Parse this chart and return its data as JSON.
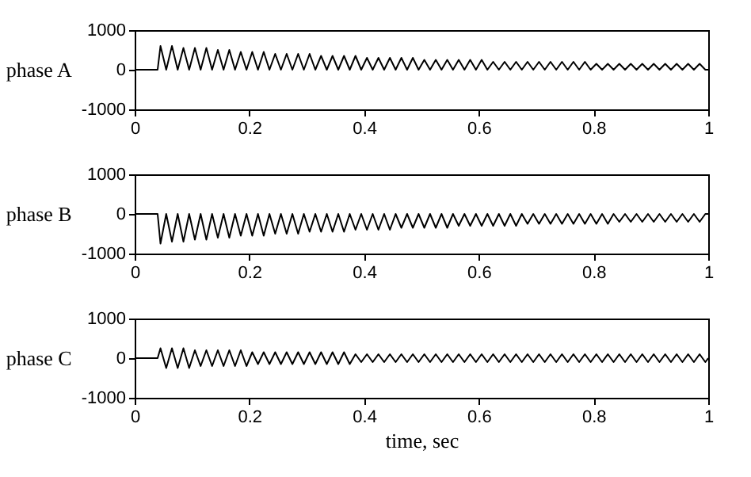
{
  "chart_data": [
    {
      "type": "line",
      "ylabel": "phase A",
      "xlim": [
        0,
        1
      ],
      "xticks": [
        0,
        0.2,
        0.4,
        0.6,
        0.8,
        1
      ],
      "ylim": [
        -1000,
        1000
      ],
      "yticks": [
        -1000,
        0,
        1000
      ],
      "grid": false,
      "line_style": "solid",
      "x": [
        0,
        0.04,
        0.045,
        0.055,
        0.065,
        0.075,
        0.085,
        0.095,
        0.105,
        0.115,
        0.125,
        0.135,
        0.145,
        0.155,
        0.165,
        0.175,
        0.185,
        0.195,
        0.205,
        0.215,
        0.225,
        0.235,
        0.245,
        0.255,
        0.265,
        0.275,
        0.285,
        0.295,
        0.305,
        0.315,
        0.325,
        0.335,
        0.345,
        0.355,
        0.365,
        0.375,
        0.385,
        0.395,
        0.405,
        0.415,
        0.425,
        0.435,
        0.445,
        0.455,
        0.465,
        0.475,
        0.485,
        0.495,
        0.505,
        0.515,
        0.525,
        0.535,
        0.545,
        0.555,
        0.565,
        0.575,
        0.585,
        0.595,
        0.605,
        0.615,
        0.625,
        0.635,
        0.645,
        0.655,
        0.665,
        0.675,
        0.685,
        0.695,
        0.705,
        0.715,
        0.725,
        0.735,
        0.745,
        0.755,
        0.765,
        0.775,
        0.785,
        0.795,
        0.805,
        0.815,
        0.825,
        0.835,
        0.845,
        0.855,
        0.865,
        0.875,
        0.885,
        0.895,
        0.905,
        0.915,
        0.925,
        0.935,
        0.945,
        0.955,
        0.965,
        0.975,
        0.985,
        0.995,
        1
      ],
      "series": [
        {
          "color": "#000000",
          "values": [
            0,
            0,
            600,
            0,
            600,
            0,
            550,
            0,
            550,
            0,
            550,
            0,
            500,
            0,
            500,
            0,
            450,
            0,
            450,
            0,
            450,
            0,
            400,
            0,
            400,
            0,
            400,
            0,
            400,
            0,
            350,
            0,
            350,
            0,
            350,
            0,
            350,
            0,
            300,
            0,
            300,
            0,
            300,
            0,
            300,
            0,
            300,
            0,
            250,
            0,
            250,
            0,
            250,
            0,
            250,
            0,
            250,
            0,
            250,
            0,
            200,
            0,
            200,
            0,
            200,
            0,
            200,
            0,
            200,
            0,
            200,
            0,
            200,
            0,
            200,
            0,
            200,
            0,
            150,
            0,
            150,
            0,
            150,
            0,
            150,
            0,
            150,
            0,
            150,
            0,
            150,
            0,
            150,
            0,
            150,
            0,
            150,
            0,
            0
          ]
        }
      ]
    },
    {
      "type": "line",
      "ylabel": "phase B",
      "xlim": [
        0,
        1
      ],
      "xticks": [
        0,
        0.2,
        0.4,
        0.6,
        0.8,
        1
      ],
      "ylim": [
        -1000,
        1000
      ],
      "yticks": [
        -1000,
        0,
        1000
      ],
      "grid": false,
      "line_style": "solid",
      "x": [
        0,
        0.04,
        0.045,
        0.055,
        0.065,
        0.075,
        0.085,
        0.095,
        0.105,
        0.115,
        0.125,
        0.135,
        0.145,
        0.155,
        0.165,
        0.175,
        0.185,
        0.195,
        0.205,
        0.215,
        0.225,
        0.235,
        0.245,
        0.255,
        0.265,
        0.275,
        0.285,
        0.295,
        0.305,
        0.315,
        0.325,
        0.335,
        0.345,
        0.355,
        0.365,
        0.375,
        0.385,
        0.395,
        0.405,
        0.415,
        0.425,
        0.435,
        0.445,
        0.455,
        0.465,
        0.475,
        0.485,
        0.495,
        0.505,
        0.515,
        0.525,
        0.535,
        0.545,
        0.555,
        0.565,
        0.575,
        0.585,
        0.595,
        0.605,
        0.615,
        0.625,
        0.635,
        0.645,
        0.655,
        0.665,
        0.675,
        0.685,
        0.695,
        0.705,
        0.715,
        0.725,
        0.735,
        0.745,
        0.755,
        0.765,
        0.775,
        0.785,
        0.795,
        0.805,
        0.815,
        0.825,
        0.835,
        0.845,
        0.855,
        0.865,
        0.875,
        0.885,
        0.895,
        0.905,
        0.915,
        0.925,
        0.935,
        0.945,
        0.955,
        0.965,
        0.975,
        0.985,
        0.995,
        1
      ],
      "series": [
        {
          "color": "#000000",
          "values": [
            0,
            0,
            -750,
            0,
            -700,
            0,
            -700,
            0,
            -650,
            0,
            -650,
            0,
            -600,
            0,
            -600,
            0,
            -550,
            0,
            -550,
            0,
            -550,
            0,
            -500,
            0,
            -500,
            0,
            -500,
            0,
            -450,
            0,
            -450,
            0,
            -450,
            0,
            -450,
            0,
            -400,
            0,
            -400,
            0,
            -400,
            0,
            -400,
            0,
            -350,
            0,
            -350,
            0,
            -350,
            0,
            -350,
            0,
            -350,
            0,
            -300,
            0,
            -300,
            0,
            -300,
            0,
            -300,
            0,
            -300,
            0,
            -300,
            0,
            -250,
            0,
            -250,
            0,
            -250,
            0,
            -250,
            0,
            -250,
            0,
            -250,
            0,
            -250,
            0,
            -250,
            0,
            -200,
            0,
            -200,
            0,
            -200,
            0,
            -200,
            0,
            -200,
            0,
            -200,
            0,
            -200,
            0,
            -200,
            0,
            0
          ]
        }
      ]
    },
    {
      "type": "line",
      "ylabel": "phase C",
      "xlabel": "time, sec",
      "xlim": [
        0,
        1
      ],
      "xticks": [
        0,
        0.2,
        0.4,
        0.6,
        0.8,
        1
      ],
      "ylim": [
        -1000,
        1000
      ],
      "yticks": [
        -1000,
        0,
        1000
      ],
      "grid": false,
      "line_style": "solid",
      "x": [
        0,
        0.04,
        0.045,
        0.055,
        0.065,
        0.075,
        0.085,
        0.095,
        0.105,
        0.115,
        0.125,
        0.135,
        0.145,
        0.155,
        0.165,
        0.175,
        0.185,
        0.195,
        0.205,
        0.215,
        0.225,
        0.235,
        0.245,
        0.255,
        0.265,
        0.275,
        0.285,
        0.295,
        0.305,
        0.315,
        0.325,
        0.335,
        0.345,
        0.355,
        0.365,
        0.375,
        0.385,
        0.395,
        0.405,
        0.415,
        0.425,
        0.435,
        0.445,
        0.455,
        0.465,
        0.475,
        0.485,
        0.495,
        0.505,
        0.515,
        0.525,
        0.535,
        0.545,
        0.555,
        0.565,
        0.575,
        0.585,
        0.595,
        0.605,
        0.615,
        0.625,
        0.635,
        0.645,
        0.655,
        0.665,
        0.675,
        0.685,
        0.695,
        0.705,
        0.715,
        0.725,
        0.735,
        0.745,
        0.755,
        0.765,
        0.775,
        0.785,
        0.795,
        0.805,
        0.815,
        0.825,
        0.835,
        0.845,
        0.855,
        0.865,
        0.875,
        0.885,
        0.895,
        0.905,
        0.915,
        0.925,
        0.935,
        0.945,
        0.955,
        0.965,
        0.975,
        0.985,
        0.995,
        1
      ],
      "series": [
        {
          "color": "#000000",
          "values": [
            0,
            0,
            250,
            -250,
            250,
            -250,
            250,
            -250,
            200,
            -200,
            200,
            -200,
            200,
            -200,
            200,
            -200,
            200,
            -200,
            150,
            -150,
            150,
            -150,
            150,
            -150,
            150,
            -150,
            150,
            -150,
            150,
            -150,
            150,
            -150,
            150,
            -150,
            150,
            -150,
            100,
            -100,
            100,
            -100,
            100,
            -100,
            100,
            -100,
            100,
            -100,
            100,
            -100,
            100,
            -100,
            100,
            -100,
            100,
            -100,
            100,
            -100,
            100,
            -100,
            100,
            -100,
            100,
            -100,
            100,
            -100,
            100,
            -100,
            100,
            -100,
            100,
            -100,
            100,
            -100,
            100,
            -100,
            100,
            -100,
            100,
            -100,
            100,
            -100,
            100,
            -100,
            100,
            -100,
            100,
            -100,
            100,
            -100,
            100,
            -100,
            100,
            -100,
            100,
            -100,
            100,
            -100,
            100,
            -100,
            0
          ]
        }
      ]
    }
  ]
}
